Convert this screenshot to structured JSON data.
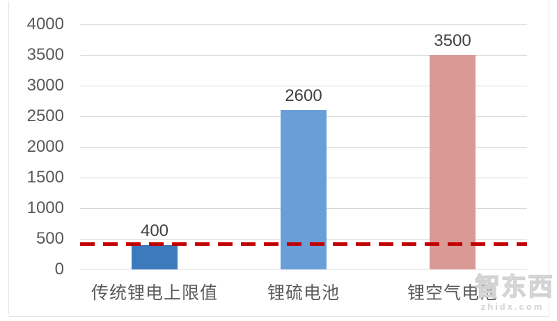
{
  "chart_data": {
    "type": "bar",
    "title": "",
    "xlabel": "",
    "ylabel": "",
    "categories": [
      "传统锂电上限值",
      "锂硫电池",
      "锂空气电池"
    ],
    "values": [
      400,
      2600,
      3500
    ],
    "data_labels": [
      "400",
      "2600",
      "3500"
    ],
    "bar_colors": [
      "#3d7abd",
      "#6a9ed8",
      "#d99a96"
    ],
    "ylim": [
      0,
      4000
    ],
    "ytick_interval": 500,
    "yticks": [
      4000,
      3500,
      3000,
      2500,
      2000,
      1500,
      1000,
      500,
      0
    ],
    "grid": "horizontal",
    "gridline_color": "#d9d9d9",
    "legend": "none",
    "reference_line": {
      "value": 420,
      "style": "dashed",
      "color": "#c00000",
      "meaning": "traditional lithium battery upper limit level"
    }
  },
  "watermark": {
    "logo_text": "智东西",
    "site_text": "zhidx.com",
    "color": "#d2d2d2"
  }
}
